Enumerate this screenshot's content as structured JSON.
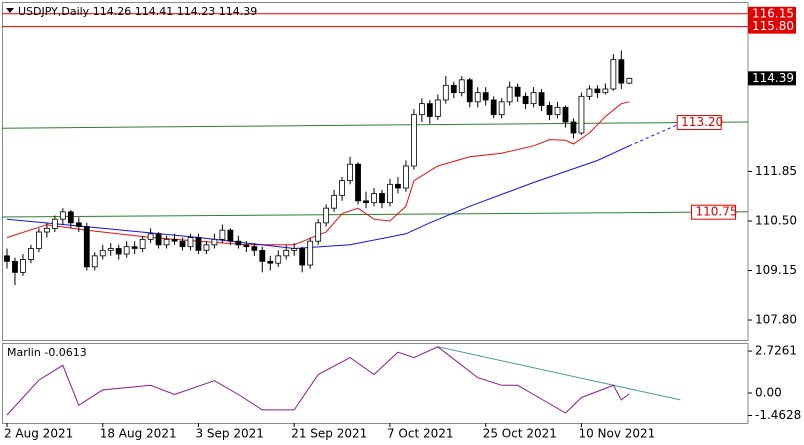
{
  "chart_data": [
    {
      "type": "candlestick",
      "title": "USDJPY,Daily",
      "header_values": [
        114.26,
        114.41,
        114.23,
        114.39
      ],
      "categories": [
        "2 Aug 2021",
        null,
        null,
        null,
        null,
        null,
        null,
        null,
        null,
        null,
        null,
        null,
        "18 Aug 2021",
        null,
        null,
        null,
        null,
        null,
        null,
        null,
        null,
        null,
        null,
        null,
        "3 Sep 2021",
        null,
        null,
        null,
        null,
        null,
        null,
        null,
        null,
        null,
        null,
        null,
        "21 Sep 2021",
        null,
        null,
        null,
        null,
        null,
        null,
        null,
        null,
        null,
        null,
        null,
        "7 Oct 2021",
        null,
        null,
        null,
        null,
        null,
        null,
        null,
        null,
        null,
        null,
        null,
        "25 Oct 2021",
        null,
        null,
        null,
        null,
        null,
        null,
        null,
        null,
        null,
        null,
        null,
        "10 Nov 2021",
        null,
        null,
        null,
        null,
        null,
        null
      ],
      "xlim": [
        -0.625,
        92.875
      ],
      "open": [
        109.55,
        109.4,
        109.1,
        109.45,
        109.75,
        110.2,
        110.3,
        110.55,
        110.75,
        110.45,
        110.35,
        109.25,
        109.55,
        109.7,
        109.75,
        109.6,
        109.8,
        109.75,
        110.0,
        110.15,
        109.85,
        110.0,
        109.95,
        109.8,
        110.05,
        109.7,
        109.85,
        110.0,
        110.25,
        109.95,
        109.85,
        109.8,
        109.7,
        109.4,
        109.35,
        109.55,
        109.7,
        109.75,
        109.3,
        109.95,
        110.45,
        110.85,
        111.2,
        111.6,
        112.05,
        111.05,
        111.0,
        111.25,
        111.0,
        111.5,
        111.4,
        112.0,
        113.4,
        113.7,
        113.35,
        113.8,
        114.2,
        114.0,
        114.35,
        113.75,
        114.0,
        113.8,
        113.4,
        113.75,
        114.15,
        113.9,
        113.7,
        114.0,
        113.65,
        113.4,
        113.6,
        113.2,
        112.9,
        113.9,
        114.1,
        114.0,
        114.1,
        114.9,
        114.26
      ],
      "high": [
        109.75,
        109.5,
        109.6,
        109.85,
        110.3,
        110.45,
        110.65,
        110.85,
        110.8,
        110.6,
        110.45,
        109.65,
        109.85,
        109.9,
        109.85,
        109.95,
        109.95,
        110.1,
        110.3,
        110.2,
        110.1,
        110.15,
        110.05,
        110.15,
        110.15,
        109.95,
        110.15,
        110.4,
        110.3,
        110.1,
        109.95,
        109.9,
        109.8,
        109.55,
        109.7,
        109.85,
        109.9,
        109.8,
        110.05,
        110.55,
        110.95,
        111.35,
        111.7,
        112.25,
        112.1,
        111.3,
        111.4,
        111.35,
        111.65,
        111.7,
        112.15,
        113.55,
        113.85,
        113.8,
        113.95,
        114.45,
        114.3,
        114.45,
        114.4,
        114.15,
        114.15,
        113.9,
        113.85,
        114.3,
        114.25,
        114.0,
        114.15,
        114.1,
        113.75,
        113.75,
        113.65,
        113.3,
        114.0,
        114.2,
        114.2,
        114.25,
        115.05,
        115.15,
        114.41
      ],
      "low": [
        109.2,
        108.75,
        109.0,
        109.35,
        109.65,
        110.05,
        110.2,
        110.4,
        110.3,
        110.2,
        109.15,
        109.15,
        109.45,
        109.55,
        109.45,
        109.5,
        109.6,
        109.65,
        109.9,
        109.75,
        109.75,
        109.85,
        109.7,
        109.7,
        109.6,
        109.6,
        109.75,
        109.9,
        109.85,
        109.75,
        109.65,
        109.55,
        109.1,
        109.15,
        109.25,
        109.45,
        109.55,
        109.1,
        109.2,
        109.85,
        110.35,
        110.75,
        111.05,
        111.5,
        110.95,
        110.85,
        110.9,
        110.85,
        110.9,
        111.25,
        111.3,
        111.9,
        113.2,
        113.15,
        113.25,
        113.7,
        113.85,
        113.9,
        113.6,
        113.6,
        113.65,
        113.3,
        113.3,
        113.65,
        113.75,
        113.55,
        113.6,
        113.5,
        113.25,
        113.3,
        113.05,
        112.75,
        112.85,
        113.8,
        113.85,
        113.95,
        114.05,
        114.1,
        114.23
      ],
      "close": [
        109.4,
        109.1,
        109.45,
        109.75,
        110.2,
        110.3,
        110.55,
        110.75,
        110.45,
        110.35,
        109.25,
        109.55,
        109.7,
        109.75,
        109.6,
        109.8,
        109.75,
        110.0,
        110.15,
        109.85,
        110.0,
        109.95,
        109.8,
        110.05,
        109.7,
        109.85,
        110.0,
        110.25,
        109.95,
        109.85,
        109.8,
        109.7,
        109.4,
        109.35,
        109.55,
        109.7,
        109.75,
        109.3,
        109.95,
        110.45,
        110.85,
        111.2,
        111.6,
        112.05,
        111.05,
        111.0,
        111.25,
        111.0,
        111.5,
        111.4,
        112.0,
        113.4,
        113.7,
        113.35,
        113.8,
        114.2,
        114.0,
        114.35,
        113.75,
        114.0,
        113.8,
        113.4,
        113.75,
        114.15,
        113.9,
        113.7,
        114.0,
        113.65,
        113.4,
        113.6,
        113.2,
        112.9,
        113.9,
        114.1,
        114.0,
        114.1,
        114.9,
        114.26,
        114.39
      ],
      "up_color": "#ffffff",
      "down_color": "#000000",
      "ylim": [
        107.31,
        116.39
      ],
      "yticks": [
        {
          "value": 107.8,
          "label": "107.80"
        },
        109.15,
        {
          "value": 110.5,
          "label": "110.50"
        },
        111.85
      ],
      "last_price": 114.39,
      "levels": [
        {
          "value": 116.15,
          "label": "116.15",
          "color": "#e00000"
        },
        {
          "value": 115.8,
          "label": "115.80",
          "color": "#e00000"
        }
      ],
      "series": [
        {
          "color": "#e01010",
          "x": [
            0,
            5,
            10,
            18,
            30,
            36,
            40,
            42,
            44,
            46,
            48,
            50,
            51,
            54,
            58,
            62,
            66,
            68,
            70,
            71,
            73,
            75,
            77,
            78
          ],
          "values": [
            110.05,
            110.4,
            110.25,
            110.05,
            109.85,
            109.85,
            110.2,
            110.7,
            110.85,
            110.55,
            110.5,
            110.9,
            111.6,
            112.0,
            112.25,
            112.35,
            112.55,
            112.72,
            112.7,
            112.6,
            112.9,
            113.35,
            113.7,
            113.75
          ]
        },
        {
          "color": "#1010e0",
          "x": [
            0,
            12,
            24,
            36,
            43,
            50,
            53,
            58,
            66,
            74,
            78
          ],
          "values": [
            110.55,
            110.3,
            110.05,
            109.75,
            109.85,
            110.15,
            110.45,
            110.9,
            111.55,
            112.15,
            112.55
          ]
        },
        {
          "color": "#1010e0",
          "dashed": true,
          "x": [
            78,
            84
          ],
          "values": [
            112.55,
            113.12
          ]
        }
      ],
      "trendlines": [
        {
          "color": "#2e7d2e",
          "x": [
            -0.625,
            92.875
          ],
          "values": [
            113.03,
            113.2
          ],
          "label": "113.20",
          "label_at": 84.5
        },
        {
          "color": "#2e7d2e",
          "x": [
            -0.625,
            92.875
          ],
          "values": [
            110.61,
            110.75
          ],
          "label": "110.75",
          "label_at": 86.3
        }
      ]
    },
    {
      "type": "line",
      "title": "Marlin",
      "current": -0.0613,
      "ylim": [
        -1.95,
        3.25
      ],
      "yticks": [
        2.7261,
        {
          "value": 0,
          "label": "0.00"
        },
        -1.4628
      ],
      "series": [
        {
          "color": "#8b1a8b",
          "x": [
            0,
            4,
            7,
            9,
            12,
            18,
            21,
            26,
            29,
            32,
            36,
            39,
            43,
            46,
            49,
            51,
            54,
            57,
            59,
            62,
            64,
            66,
            70,
            72,
            76,
            77,
            78
          ],
          "values": [
            -1.43,
            0.84,
            1.8,
            -0.8,
            0.2,
            0.5,
            -0.1,
            0.8,
            -0.1,
            -1.1,
            -1.1,
            1.2,
            2.3,
            1.2,
            2.65,
            2.3,
            3.0,
            1.8,
            1.0,
            0.5,
            0.5,
            -0.1,
            -1.3,
            -0.3,
            0.5,
            -0.45,
            -0.0613
          ]
        }
      ],
      "trendline": {
        "color": "#4a9c9c",
        "x": [
          54,
          84.4
        ],
        "values": [
          3.0,
          -0.45
        ]
      }
    }
  ]
}
